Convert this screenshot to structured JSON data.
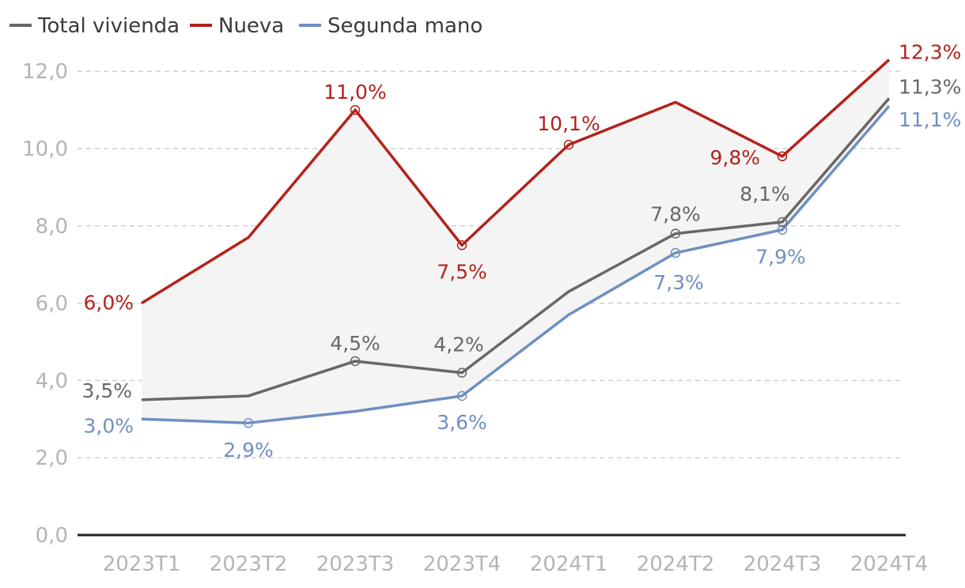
{
  "chart_data": {
    "type": "line",
    "categories": [
      "2023T1",
      "2023T2",
      "2023T3",
      "2023T4",
      "2024T1",
      "2024T2",
      "2024T3",
      "2024T4"
    ],
    "ylim": [
      0,
      12.5
    ],
    "yticks": [
      0,
      2,
      4,
      6,
      8,
      10,
      12
    ],
    "ytick_labels": [
      "0,0",
      "2,0",
      "4,0",
      "6,0",
      "8,0",
      "10,0",
      "12,0"
    ],
    "grid": true,
    "legend_position": "top-left",
    "shaded_band": "between Nueva and Segunda mano",
    "series": [
      {
        "name": "Total vivienda",
        "color": "#6b6667",
        "values": [
          3.5,
          3.6,
          4.5,
          4.2,
          6.3,
          7.8,
          8.1,
          11.3
        ],
        "labels": [
          "3,5%",
          "",
          "4,5%",
          "4,2%",
          "",
          "7,8%",
          "8,1%",
          "11,3%"
        ]
      },
      {
        "name": "Nueva",
        "color": "#b3221b",
        "values": [
          6.0,
          7.7,
          11.0,
          7.5,
          10.1,
          11.2,
          9.8,
          12.3
        ],
        "labels": [
          "6,0%",
          "",
          "11,0%",
          "7,5%",
          "10,1%",
          "",
          "9,8%",
          "12,3%"
        ]
      },
      {
        "name": "Segunda mano",
        "color": "#6f8fc2",
        "values": [
          3.0,
          2.9,
          3.2,
          3.6,
          5.7,
          7.3,
          7.9,
          11.1
        ],
        "labels": [
          "3,0%",
          "2,9%",
          "",
          "3,6%",
          "",
          "7,3%",
          "7,9%",
          "11,1%"
        ]
      }
    ]
  }
}
